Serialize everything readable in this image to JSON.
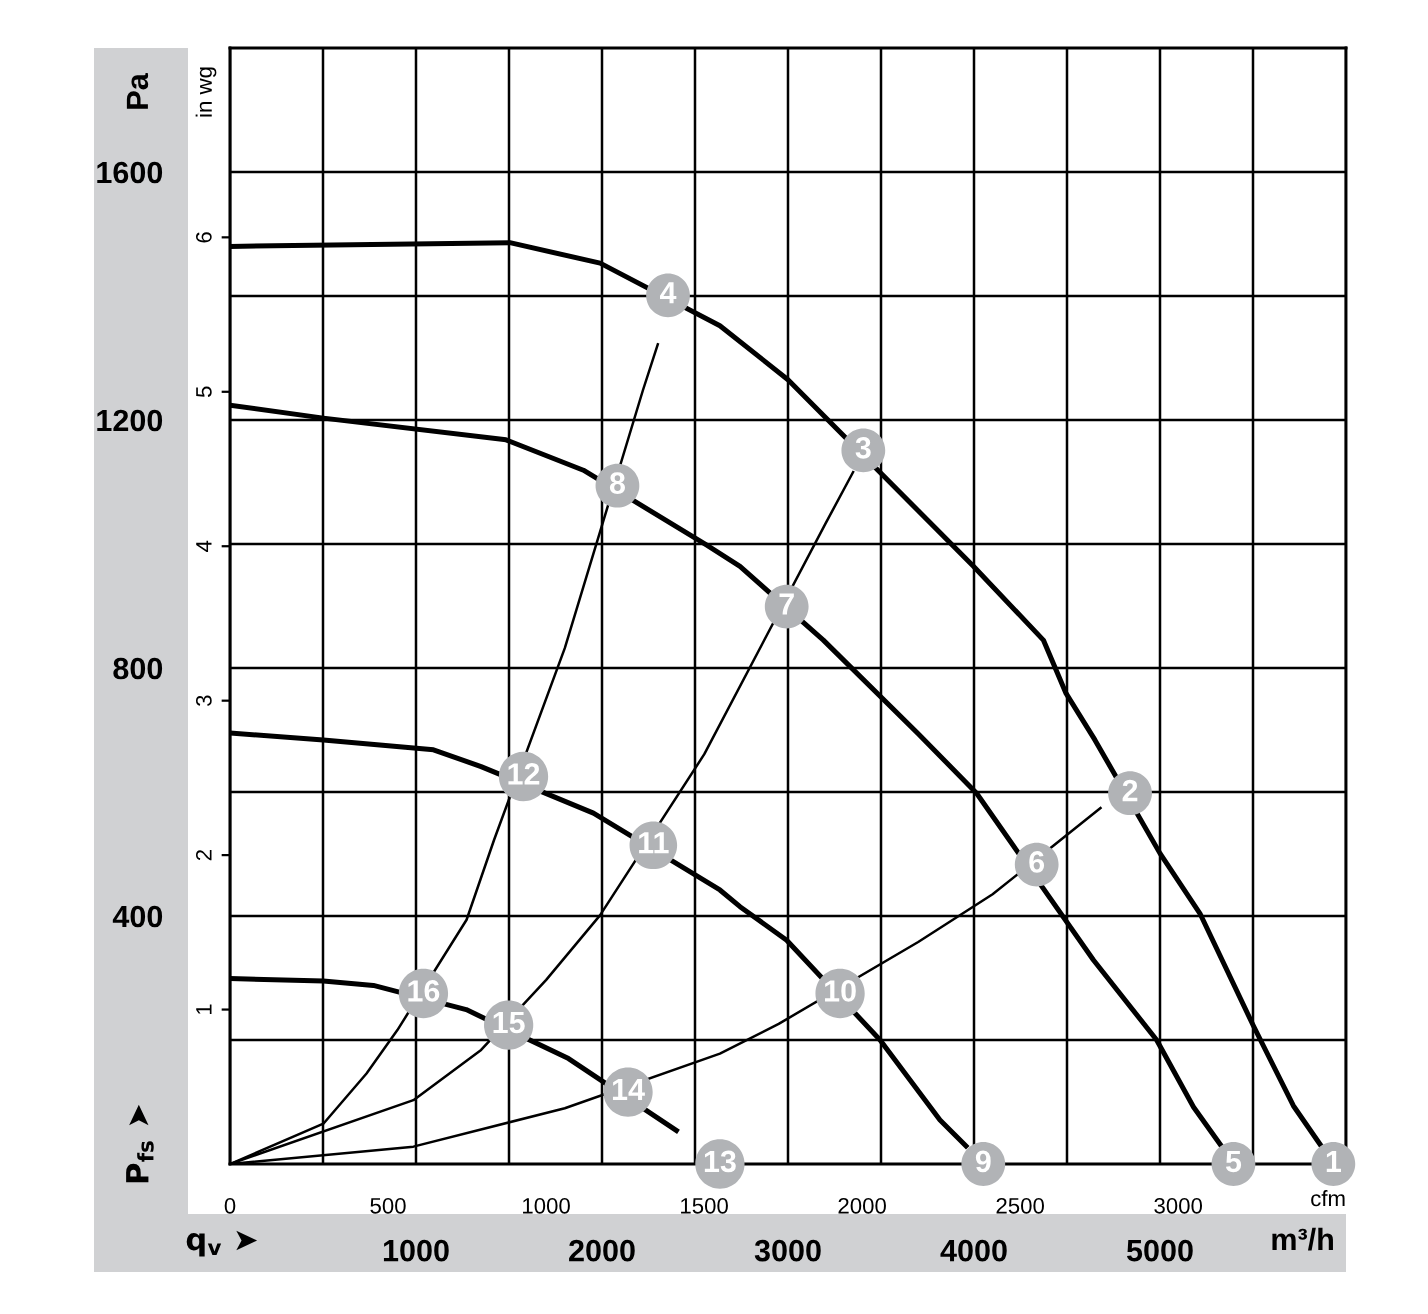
{
  "chart_data": {
    "type": "line",
    "xlabel": "m³/h",
    "ylabel": "Pa",
    "y2label": "in wg",
    "x2label": "cfm",
    "xlim": [
      0,
      6000
    ],
    "xticks": [
      {
        "value": 0,
        "label": null
      },
      {
        "value": 500,
        "label": null
      },
      1000,
      {
        "value": 1500,
        "label": null
      },
      2000,
      {
        "value": 2500,
        "label": null
      },
      3000,
      {
        "value": 3500,
        "label": null
      },
      4000,
      {
        "value": 4500,
        "label": null
      },
      5000,
      {
        "value": 5500,
        "label": null
      },
      {
        "value": 6000,
        "label": null
      }
    ],
    "ylim": [
      0,
      1800
    ],
    "yticks": [
      {
        "value": 200,
        "label": null
      },
      400,
      {
        "value": 600,
        "label": null
      },
      800,
      {
        "value": 1000,
        "label": null
      },
      1200,
      {
        "value": 1400,
        "label": null
      },
      1600
    ],
    "y2lim": [
      0,
      7.226
    ],
    "y2ticks": [
      1,
      2,
      3,
      4,
      5,
      6
    ],
    "x2lim": [
      0,
      3531
    ],
    "x2ticks": [
      0,
      500,
      1000,
      1500,
      2000,
      2500,
      3000
    ],
    "grid": true,
    "line_style": "solid",
    "series": [
      {
        "color": "#000000",
        "x": [
          0,
          1505,
          1990,
          2634,
          3000,
          3997,
          4373,
          4495,
          4650,
          5000,
          5215,
          5502,
          5717,
          5860
        ],
        "values": [
          1480,
          1486,
          1453,
          1352,
          1265,
          964,
          845,
          759,
          684,
          501,
          404,
          223,
          94,
          32
        ]
      },
      {
        "color": "#000000",
        "x": [
          0,
          502,
          1484,
          1900,
          2559,
          2742,
          3190,
          3700,
          4014,
          4642,
          4982,
          5180,
          5323
        ],
        "values": [
          1224,
          1203,
          1168,
          1119,
          999,
          964,
          845,
          694,
          598,
          329,
          200,
          92,
          32
        ]
      },
      {
        "color": "#000000",
        "x": [
          0,
          502,
          1094,
          1350,
          1954,
          2634,
          2742,
          2993,
          3495,
          3817,
          3957
        ],
        "values": [
          695,
          684,
          668,
          641,
          566,
          442,
          415,
          361,
          200,
          71,
          29
        ]
      },
      {
        "color": "#000000",
        "x": [
          0,
          502,
          771,
          1270,
          1820,
          2400
        ],
        "values": [
          299,
          295,
          288,
          249,
          170,
          54
        ]
      },
      {
        "type": "line",
        "color": "#000000",
        "x": [
          0,
          502,
          734,
          900,
          1272,
          1420,
          1800,
          2220,
          2300
        ],
        "values": [
          0,
          65,
          146,
          216,
          394,
          523,
          832,
          1248,
          1322
        ]
      },
      {
        "type": "line",
        "color": "#000000",
        "x": [
          0,
          986,
          1350,
          1700,
          1989,
          2550,
          3200,
          3350
        ],
        "values": [
          0,
          103,
          184,
          297,
          401,
          661,
          1032,
          1116
        ]
      },
      {
        "type": "line",
        "color": "#000000",
        "x": [
          0,
          986,
          1800,
          2634,
          2950,
          3700,
          4100,
          4680
        ],
        "values": [
          0,
          28,
          90,
          178,
          226,
          358,
          435,
          574
        ]
      }
    ],
    "annotations": [
      "P$_{fs}$ ➤",
      "q$_{v}$ ➤",
      {
        "text": "1",
        "x": 5932,
        "y": 0
      },
      {
        "text": "2",
        "x": 4839,
        "y": 598
      },
      {
        "text": "3",
        "x": 3405,
        "y": 1151
      },
      {
        "text": "4",
        "x": 2355,
        "y": 1401
      },
      {
        "text": "5",
        "x": 5395,
        "y": 0
      },
      {
        "text": "6",
        "x": 4337,
        "y": 483
      },
      {
        "text": "7",
        "x": 2993,
        "y": 899
      },
      {
        "text": "8",
        "x": 2083,
        "y": 1094
      },
      {
        "text": "9",
        "x": 4050,
        "y": 0
      },
      {
        "text": "10",
        "x": 3280,
        "y": 275
      },
      {
        "text": "11",
        "x": 2276,
        "y": 514
      },
      {
        "text": "12",
        "x": 1578,
        "y": 625
      },
      {
        "text": "13",
        "x": 2634,
        "y": 0
      },
      {
        "text": "14",
        "x": 2140,
        "y": 116
      },
      {
        "text": "15",
        "x": 1498,
        "y": 224
      },
      {
        "text": "16",
        "x": 1040,
        "y": 275
      }
    ]
  }
}
